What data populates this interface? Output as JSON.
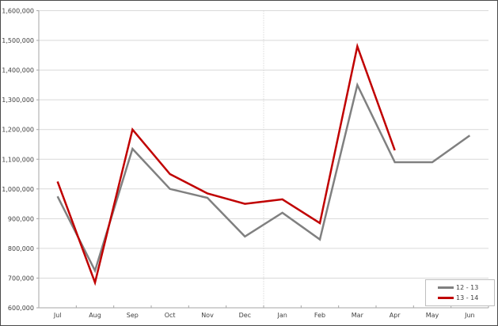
{
  "chart_data": {
    "type": "line",
    "title": "",
    "categories": [
      "Jul",
      "Aug",
      "Sep",
      "Oct",
      "Nov",
      "Dec",
      "Jan",
      "Feb",
      "Mar",
      "Apr",
      "May",
      "Jun"
    ],
    "series": [
      {
        "name": "12 - 13",
        "color": "#808080",
        "values": [
          975000,
          725000,
          1135000,
          1000000,
          970000,
          840000,
          920000,
          830000,
          1350000,
          1090000,
          1090000,
          1180000
        ]
      },
      {
        "name": "13 - 14",
        "color": "#c00000",
        "values": [
          1025000,
          685000,
          1200000,
          1050000,
          985000,
          950000,
          965000,
          885000,
          1480000,
          1130000,
          null,
          null
        ]
      }
    ],
    "ylim": [
      600000,
      1600000
    ],
    "ytick_step": 100000,
    "ytick_labels": [
      "600,000",
      "700,000",
      "800,000",
      "900,000",
      "1,000,000",
      "1,100,000",
      "1,200,000",
      "1,300,000",
      "1,400,000",
      "1,500,000",
      "1,600,000"
    ],
    "xlabel": "",
    "ylabel": "",
    "grid": true,
    "divider_after_category": "Dec",
    "legend_position": "bottom-right",
    "colors": {
      "gridline": "#d9d9d9",
      "axis": "#a6a6a6",
      "divider": "#c8c8c8",
      "tick_text": "#404040"
    }
  }
}
